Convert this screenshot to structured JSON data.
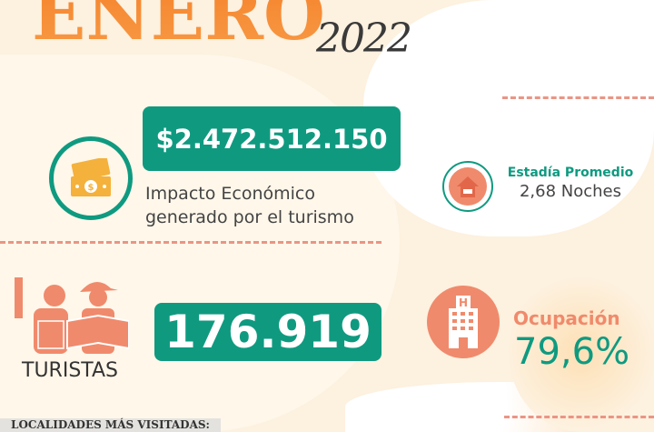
{
  "header": {
    "month": "ENERO",
    "year": "2022"
  },
  "economic": {
    "amount": "$2.472.512.150",
    "label_line1": "Impacto Económico",
    "label_line2": "generado por el turismo",
    "icon": "money-icon"
  },
  "stay": {
    "title": "Estadía Promedio",
    "value": "2,68 Noches",
    "icon": "house-bed-icon"
  },
  "tourists": {
    "value": "176.919",
    "label": "TURISTAS",
    "icon": "tourists-icon"
  },
  "occupancy": {
    "title": "Ocupación",
    "value": "79,6%",
    "icon": "hotel-icon"
  },
  "footer": {
    "section_title": "LOCALIDADES MÁS VISITADAS:"
  },
  "colors": {
    "green": "#0f9a80",
    "orange": "#f08a6c",
    "title_orange": "#f5822b"
  }
}
